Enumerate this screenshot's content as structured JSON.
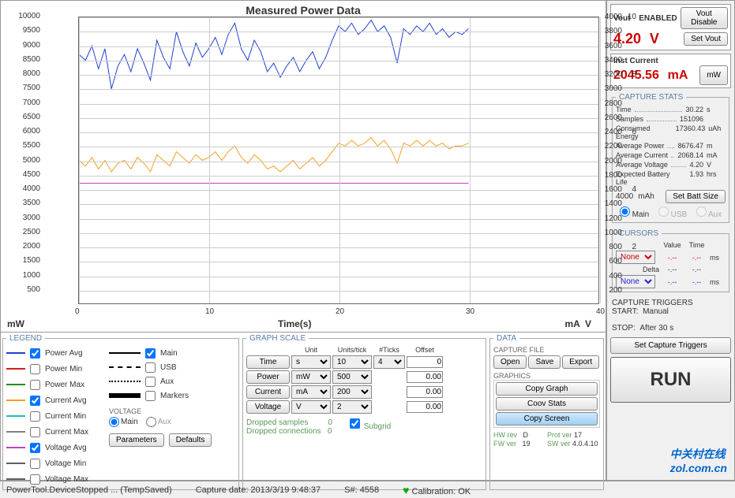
{
  "chart": {
    "title": "Measured Power Data",
    "x_label": "Time(s)",
    "left_unit": "mW",
    "right_unit1": "mA",
    "right_unit2": "V",
    "x_ticks": [
      0,
      10,
      20,
      30,
      40
    ],
    "y_left_ticks": [
      500,
      1000,
      1500,
      2000,
      2500,
      3000,
      3500,
      4000,
      4500,
      5000,
      5500,
      6000,
      6500,
      7000,
      7500,
      8000,
      8500,
      9000,
      9500,
      10000
    ],
    "y_right1_ticks": [
      200,
      400,
      600,
      800,
      1000,
      1200,
      1400,
      1600,
      1800,
      2000,
      2200,
      2400,
      2600,
      2800,
      3000,
      3200,
      3400,
      3600,
      3800,
      4000
    ],
    "y_right2_ticks": [
      2,
      4,
      6,
      8,
      10
    ],
    "xlim": [
      0,
      40
    ],
    "y_left_lim": [
      0,
      10000
    ],
    "series": {
      "power_avg": {
        "color": "#2040d0",
        "data": [
          [
            0,
            8700
          ],
          [
            0.5,
            8500
          ],
          [
            1,
            9000
          ],
          [
            1.5,
            8200
          ],
          [
            2,
            8900
          ],
          [
            2.5,
            7500
          ],
          [
            3,
            8300
          ],
          [
            3.5,
            8700
          ],
          [
            4,
            8100
          ],
          [
            4.5,
            8900
          ],
          [
            5,
            8400
          ],
          [
            5.5,
            7800
          ],
          [
            6,
            9200
          ],
          [
            6.5,
            8600
          ],
          [
            7,
            8200
          ],
          [
            7.5,
            9500
          ],
          [
            8,
            8800
          ],
          [
            8.5,
            8300
          ],
          [
            9,
            9100
          ],
          [
            9.5,
            8600
          ],
          [
            10,
            8900
          ],
          [
            10.5,
            9300
          ],
          [
            11,
            8700
          ],
          [
            11.5,
            9400
          ],
          [
            12,
            9800
          ],
          [
            12.5,
            8900
          ],
          [
            13,
            8500
          ],
          [
            13.5,
            9200
          ],
          [
            14,
            8800
          ],
          [
            14.5,
            8100
          ],
          [
            15,
            8400
          ],
          [
            15.5,
            7900
          ],
          [
            16,
            8300
          ],
          [
            16.5,
            8600
          ],
          [
            17,
            8100
          ],
          [
            17.5,
            8500
          ],
          [
            18,
            8800
          ],
          [
            18.5,
            8200
          ],
          [
            19,
            8600
          ],
          [
            19.5,
            9200
          ],
          [
            20,
            9700
          ],
          [
            20.5,
            9500
          ],
          [
            21,
            9800
          ],
          [
            21.5,
            9400
          ],
          [
            22,
            9600
          ],
          [
            22.5,
            9900
          ],
          [
            23,
            9500
          ],
          [
            23.5,
            9700
          ],
          [
            24,
            9300
          ],
          [
            24.5,
            8400
          ],
          [
            25,
            9600
          ],
          [
            25.5,
            9400
          ],
          [
            26,
            9700
          ],
          [
            26.5,
            9500
          ],
          [
            27,
            9800
          ],
          [
            27.5,
            9400
          ],
          [
            28,
            9600
          ],
          [
            28.5,
            9300
          ],
          [
            29,
            9500
          ],
          [
            29.5,
            9400
          ],
          [
            30,
            9600
          ]
        ]
      },
      "current_avg": {
        "color": "#f0a020",
        "data": [
          [
            0,
            5000
          ],
          [
            0.5,
            4800
          ],
          [
            1,
            5100
          ],
          [
            1.5,
            4700
          ],
          [
            2,
            5000
          ],
          [
            2.5,
            4600
          ],
          [
            3,
            4900
          ],
          [
            3.5,
            5000
          ],
          [
            4,
            4700
          ],
          [
            4.5,
            5100
          ],
          [
            5,
            4900
          ],
          [
            5.5,
            4600
          ],
          [
            6,
            5200
          ],
          [
            6.5,
            5000
          ],
          [
            7,
            4800
          ],
          [
            7.5,
            5300
          ],
          [
            8,
            5100
          ],
          [
            8.5,
            4900
          ],
          [
            9,
            5200
          ],
          [
            9.5,
            5000
          ],
          [
            10,
            5100
          ],
          [
            10.5,
            5300
          ],
          [
            11,
            5000
          ],
          [
            11.5,
            5300
          ],
          [
            12,
            5500
          ],
          [
            12.5,
            5100
          ],
          [
            13,
            4900
          ],
          [
            13.5,
            5200
          ],
          [
            14,
            5000
          ],
          [
            14.5,
            4700
          ],
          [
            15,
            4800
          ],
          [
            15.5,
            4600
          ],
          [
            16,
            4800
          ],
          [
            16.5,
            5000
          ],
          [
            17,
            4700
          ],
          [
            17.5,
            4900
          ],
          [
            18,
            5100
          ],
          [
            18.5,
            4800
          ],
          [
            19,
            5000
          ],
          [
            19.5,
            5300
          ],
          [
            20,
            5600
          ],
          [
            20.5,
            5500
          ],
          [
            21,
            5700
          ],
          [
            21.5,
            5500
          ],
          [
            22,
            5600
          ],
          [
            22.5,
            5800
          ],
          [
            23,
            5500
          ],
          [
            23.5,
            5700
          ],
          [
            24,
            5400
          ],
          [
            24.5,
            4900
          ],
          [
            25,
            5600
          ],
          [
            25.5,
            5500
          ],
          [
            26,
            5700
          ],
          [
            26.5,
            5500
          ],
          [
            27,
            5700
          ],
          [
            27.5,
            5500
          ],
          [
            28,
            5600
          ],
          [
            28.5,
            5400
          ],
          [
            29,
            5500
          ],
          [
            29.5,
            5500
          ],
          [
            30,
            5600
          ]
        ]
      },
      "voltage_avg": {
        "color": "#c040c0",
        "data": [
          [
            0,
            4200
          ],
          [
            30,
            4200
          ]
        ]
      }
    }
  },
  "legend": {
    "items": [
      {
        "label": "Power Avg",
        "color": "#2040d0",
        "checked": true
      },
      {
        "label": "Power Min",
        "color": "#d02020",
        "checked": false
      },
      {
        "label": "Power Max",
        "color": "#209020",
        "checked": false
      },
      {
        "label": "Current Avg",
        "color": "#f0a020",
        "checked": true
      },
      {
        "label": "Current Min",
        "color": "#20c0c0",
        "checked": false
      },
      {
        "label": "Current Max",
        "color": "#808080",
        "checked": false
      },
      {
        "label": "Voltage Avg",
        "color": "#c040c0",
        "checked": true
      },
      {
        "label": "Voltage Min",
        "color": "#606060",
        "checked": false
      },
      {
        "label": "Voltage Max",
        "color": "#606060",
        "checked": false
      }
    ],
    "styles": [
      {
        "label": "Main",
        "checked": true,
        "cls": "style-line"
      },
      {
        "label": "USB",
        "checked": false,
        "cls": "style-dash"
      },
      {
        "label": "Aux",
        "checked": false,
        "cls": "style-dot"
      },
      {
        "label": "Markers",
        "checked": false,
        "cls": "style-thick"
      }
    ],
    "voltage_label": "VOLTAGE",
    "voltage_main": "Main",
    "voltage_aux": "Aux",
    "param_btn": "Parameters",
    "def_btn": "Defaults"
  },
  "graph_scale": {
    "title": "GRAPH SCALE",
    "headers": [
      "",
      "Unit",
      "Units/tick",
      "#Ticks",
      "Offset"
    ],
    "rows": [
      {
        "name": "Time",
        "unit": "s",
        "upt": "10",
        "ticks": "4",
        "offset": "0"
      },
      {
        "name": "Power",
        "unit": "mW",
        "upt": "500",
        "ticks": "",
        "offset": "0.00"
      },
      {
        "name": "Current",
        "unit": "mA",
        "upt": "200",
        "ticks": "",
        "offset": "0.00"
      },
      {
        "name": "Voltage",
        "unit": "V",
        "upt": "2",
        "ticks": "",
        "offset": "0.00"
      }
    ],
    "dropped_samples": "Dropped samples",
    "dropped_samples_v": "0",
    "dropped_conn": "Dropped connections",
    "dropped_conn_v": "0",
    "subgrid": "Subgrid"
  },
  "data": {
    "title": "DATA",
    "capture_file": "CAPTURE FILE",
    "open": "Open",
    "save": "Save",
    "export": "Export",
    "graphics": "GRAPHICS",
    "copy_graph": "Copy Graph",
    "copy_stats": "Coov Stats",
    "copy_screen": "Copy Screen",
    "hw_rev": "HW rev",
    "hw_rev_v": "D",
    "fw_ver": "FW ver",
    "fw_ver_v": "19",
    "prot_ver": "Prot ver",
    "prot_ver_v": "17",
    "sw_ver": "SW ver",
    "sw_ver_v": "4.0.4.10"
  },
  "right": {
    "vout": "Vout",
    "enabled": "ENABLED",
    "vout_val": "4.20",
    "vout_unit": "V",
    "vout_disable": "Vout Disable",
    "set_vout": "Set Vout",
    "inst_current": "Inst Current",
    "inst_val": "2045.56",
    "inst_unit": "mA",
    "mw_btn": "mW",
    "capture_stats": "CAPTURE STATS",
    "stats": [
      {
        "k": "Time",
        "v": "30.22",
        "u": "s"
      },
      {
        "k": "Samples",
        "v": "151096",
        "u": ""
      },
      {
        "k": "Consumed Energy",
        "v": "17360.43",
        "u": "uAh"
      },
      {
        "k": "Average Power",
        "v": "8676.47",
        "u": "m"
      },
      {
        "k": "Average Current",
        "v": "2068.14",
        "u": "mA"
      },
      {
        "k": "Average Voltage",
        "v": "4.20",
        "u": "V"
      },
      {
        "k": "Expected Battery Life",
        "v": "1.93",
        "u": "hrs"
      }
    ],
    "batt_val": "4000",
    "batt_unit": "mAh",
    "set_batt": "Set Batt Size",
    "src_main": "Main",
    "src_usb": "USB",
    "src_aux": "Aux",
    "cursors": "CURSORS",
    "value": "Value",
    "time": "Time",
    "none": "None",
    "delta": "Delta",
    "ms": "ms",
    "capture_triggers": "CAPTURE TRIGGERS",
    "start": "START:",
    "start_v": "Manual",
    "stop": "STOP:",
    "stop_v": "After 30 s",
    "set_triggers": "Set Capture Triggers",
    "run": "RUN"
  },
  "status": {
    "device": "PowerTool.DeviceStopped ... (TempSaved)",
    "capture": "Capture date: 2013/3/19 9:48:37",
    "serial": "S#: 4558",
    "calib": "Calibration: OK"
  },
  "watermark": "zol.com.cn"
}
